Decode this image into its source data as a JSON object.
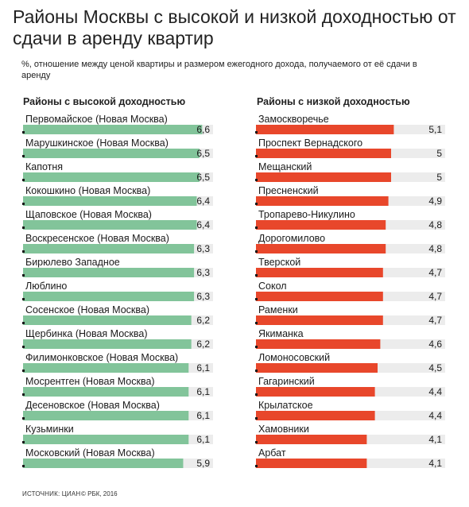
{
  "header": {
    "title": "Районы Москвы с высокой и низкой доходностью от сдачи в аренду квартир",
    "subtitle": "%, отношение между ценой квартиры и размером ежегодного дохода, получаемого от её сдачи в аренду"
  },
  "footer": {
    "source": "ИСТОЧНИК: ЦИАН",
    "copyright": "© РБК, 2016"
  },
  "colors": {
    "high_bar": "#82c49a",
    "low_bar": "#e8472b",
    "track": "#ececec",
    "marker": "#1a1a1a"
  },
  "chart_data": [
    {
      "type": "bar",
      "title": "Районы с высокой доходностью",
      "xlim": [
        0,
        7
      ],
      "categories": [
        "Первомайское (Новая Москва)",
        "Марушкинское (Новая Москва)",
        "Капотня",
        "Кокошкино (Новая Москва)",
        "Щаповское (Новая Москва)",
        "Воскресенское (Новая Москва)",
        "Бирюлево Западное",
        "Люблино",
        "Сосенское (Новая Москва)",
        "Щербинка (Новая Москва)",
        "Филимонковское (Новая Москва)",
        "Мосрентген (Новая Москва)",
        "Десеновское (Новая Москва)",
        "Кузьминки",
        "Московский (Новая Москва)"
      ],
      "values": [
        6.6,
        6.5,
        6.5,
        6.4,
        6.4,
        6.3,
        6.3,
        6.3,
        6.2,
        6.2,
        6.1,
        6.1,
        6.1,
        6.1,
        5.9
      ],
      "labels": [
        "6,6",
        "6,5",
        "6,5",
        "6,4",
        "6,4",
        "6,3",
        "6,3",
        "6,3",
        "6,2",
        "6,2",
        "6,1",
        "6,1",
        "6,1",
        "6,1",
        "5,9"
      ]
    },
    {
      "type": "bar",
      "title": "Районы с низкой доходностью",
      "xlim": [
        0,
        7
      ],
      "categories": [
        "Замоскворечье",
        "Проспект Вернадского",
        "Мещанский",
        "Пресненский",
        "Тропарево-Никулино",
        "Дорогомилово",
        "Тверской",
        "Сокол",
        "Раменки",
        "Якиманка",
        "Ломоносовский",
        "Гагаринский",
        "Крылатское",
        "Хамовники",
        "Арбат"
      ],
      "values": [
        5.1,
        5.0,
        5.0,
        4.9,
        4.8,
        4.8,
        4.7,
        4.7,
        4.7,
        4.6,
        4.5,
        4.4,
        4.4,
        4.1,
        4.1
      ],
      "labels": [
        "5,1",
        "5",
        "5",
        "4,9",
        "4,8",
        "4,8",
        "4,7",
        "4,7",
        "4,7",
        "4,6",
        "4,5",
        "4,4",
        "4,4",
        "4,1",
        "4,1"
      ]
    }
  ]
}
